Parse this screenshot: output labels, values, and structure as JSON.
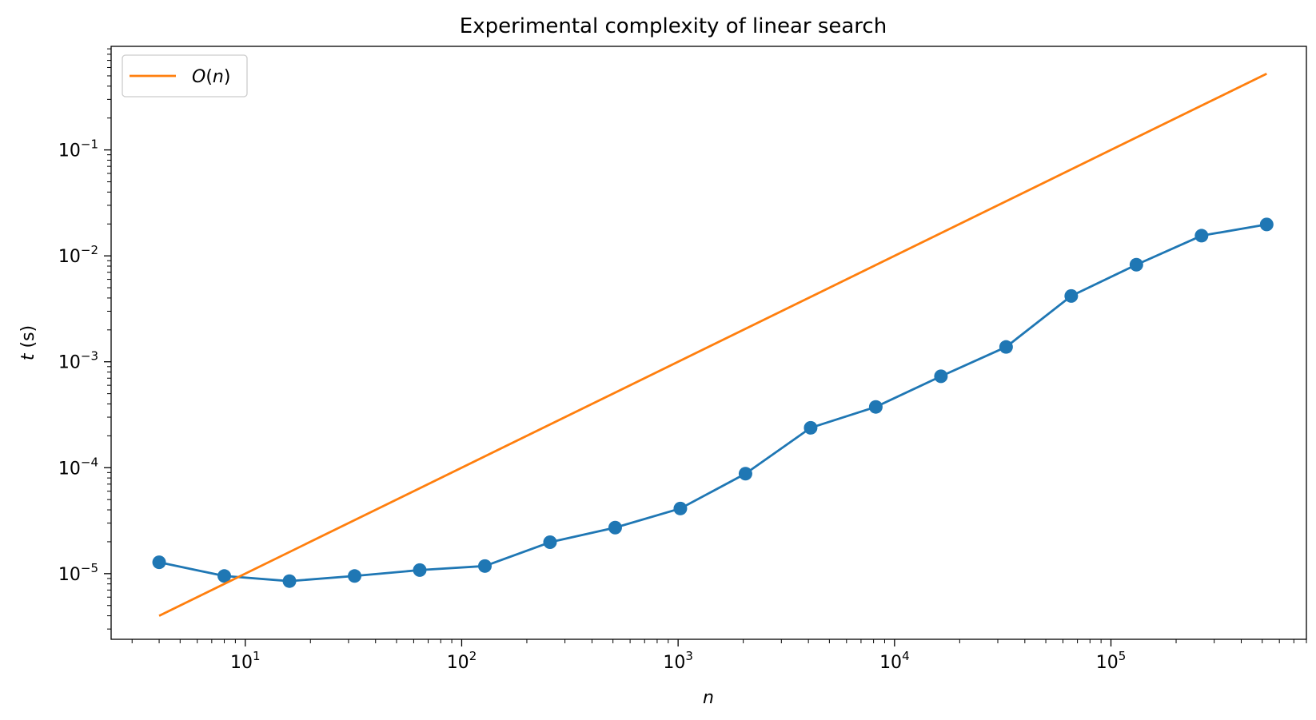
{
  "chart_data": {
    "type": "line",
    "title": "Experimental complexity of linear search",
    "xlabel": "n",
    "ylabel_var": "t",
    "ylabel_unit": " (s)",
    "xscale": "log",
    "yscale": "log",
    "xlim": [
      2.4,
      800000
    ],
    "ylim": [
      2.4e-06,
      0.95
    ],
    "x_major_ticks": [
      10,
      100,
      1000,
      10000,
      100000
    ],
    "x_tick_labels": [
      {
        "base": "10",
        "exp": "1"
      },
      {
        "base": "10",
        "exp": "2"
      },
      {
        "base": "10",
        "exp": "3"
      },
      {
        "base": "10",
        "exp": "4"
      },
      {
        "base": "10",
        "exp": "5"
      }
    ],
    "y_major_ticks": [
      1e-05,
      0.0001,
      0.001,
      0.01,
      0.1
    ],
    "y_tick_labels": [
      {
        "base": "10",
        "exp": "−5"
      },
      {
        "base": "10",
        "exp": "−4"
      },
      {
        "base": "10",
        "exp": "−3"
      },
      {
        "base": "10",
        "exp": "−2"
      },
      {
        "base": "10",
        "exp": "−1"
      }
    ],
    "grid": false,
    "legend_position": "top-left",
    "series": [
      {
        "color": "#1f77b4",
        "marker": "circle",
        "x": [
          4,
          8,
          16,
          32,
          64,
          128,
          256,
          512,
          1024,
          2048,
          4096,
          8192,
          16384,
          32768,
          65536,
          131072,
          262144,
          524288
        ],
        "y": [
          1.28e-05,
          9.5e-06,
          8.5e-06,
          9.5e-06,
          1.08e-05,
          1.18e-05,
          1.98e-05,
          2.72e-05,
          4.12e-05,
          8.78e-05,
          0.000238,
          0.000375,
          0.00073,
          0.00138,
          0.00418,
          0.00825,
          0.0155,
          0.0198
        ]
      },
      {
        "name": "O(n)",
        "name_parts": {
          "fn": "O",
          "open": "(",
          "var": "n",
          "close": ")"
        },
        "color": "#ff7f0e",
        "marker": "none",
        "x": [
          4,
          524288
        ],
        "y": [
          4e-06,
          0.524288
        ]
      }
    ]
  }
}
